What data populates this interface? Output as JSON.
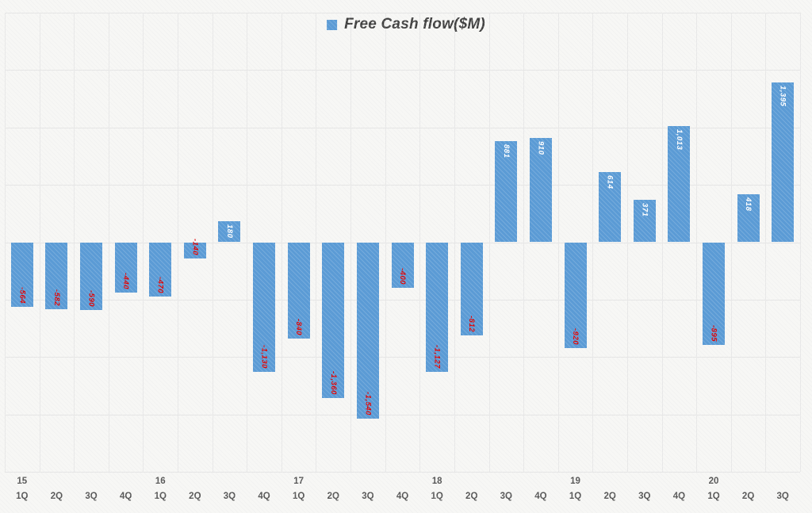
{
  "chart_data": {
    "type": "bar",
    "title": "Free Cash flow($M)",
    "legend": [
      {
        "label": "Free Cash flow($M)",
        "color": "#5b9bd5"
      }
    ],
    "legend_position": "top-center",
    "categories": [
      {
        "year": "15",
        "quarter": "1Q"
      },
      {
        "year": "",
        "quarter": "2Q"
      },
      {
        "year": "",
        "quarter": "3Q"
      },
      {
        "year": "",
        "quarter": "4Q"
      },
      {
        "year": "16",
        "quarter": "1Q"
      },
      {
        "year": "",
        "quarter": "2Q"
      },
      {
        "year": "",
        "quarter": "3Q"
      },
      {
        "year": "",
        "quarter": "4Q"
      },
      {
        "year": "17",
        "quarter": "1Q"
      },
      {
        "year": "",
        "quarter": "2Q"
      },
      {
        "year": "",
        "quarter": "3Q"
      },
      {
        "year": "",
        "quarter": "4Q"
      },
      {
        "year": "18",
        "quarter": "1Q"
      },
      {
        "year": "",
        "quarter": "2Q"
      },
      {
        "year": "",
        "quarter": "3Q"
      },
      {
        "year": "",
        "quarter": "4Q"
      },
      {
        "year": "19",
        "quarter": "1Q"
      },
      {
        "year": "",
        "quarter": "2Q"
      },
      {
        "year": "",
        "quarter": "3Q"
      },
      {
        "year": "",
        "quarter": "4Q"
      },
      {
        "year": "20",
        "quarter": "1Q"
      },
      {
        "year": "",
        "quarter": "2Q"
      },
      {
        "year": "",
        "quarter": "3Q"
      }
    ],
    "values": [
      -564,
      -582,
      -590,
      -440,
      -470,
      -140,
      180,
      -1130,
      -840,
      -1360,
      -1540,
      -400,
      -1127,
      -812,
      881,
      910,
      -920,
      614,
      371,
      1013,
      -895,
      418,
      1395
    ],
    "labels": [
      "-564",
      "-582",
      "-590",
      "-440",
      "-470",
      "-140",
      "180",
      "-1,130",
      "-840",
      "-1,360",
      "-1,540",
      "-400",
      "-1,127",
      "-812",
      "881",
      "910",
      "-920",
      "614",
      "371",
      "1,013",
      "-895",
      "418",
      "1,395"
    ],
    "ylim": [
      -2000,
      2000
    ],
    "gridline_step": 500,
    "grid": true,
    "bar_color": "#5b9bd5",
    "label_color_positive": "#ffffff",
    "label_color_negative": "#e00000",
    "axis_text_color": "#555555"
  }
}
